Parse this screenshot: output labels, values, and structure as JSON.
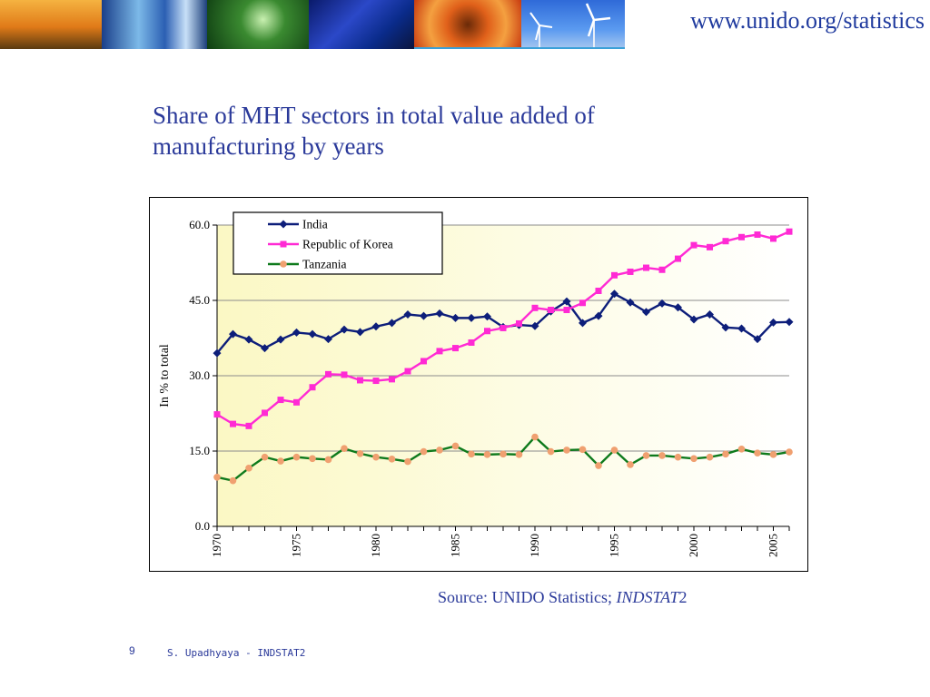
{
  "header": {
    "url": "www.unido.org/statistics"
  },
  "slide": {
    "title": "Share of MHT sectors in total value added of manufacturing by years",
    "source_prefix": "Source: UNIDO Statistics; ",
    "source_italic": "INDSTAT",
    "source_suffix": "2",
    "page_number": "9",
    "footer": "S. Upadhyaya - INDSTAT2"
  },
  "chart_data": {
    "type": "line",
    "title": "",
    "xlabel": "",
    "ylabel": "In % to total",
    "ylim": [
      0,
      60
    ],
    "yticks": [
      "0.0",
      "15.0",
      "30.0",
      "45.0",
      "60.0"
    ],
    "xtick_labels": [
      "1970",
      "1975",
      "1980",
      "1985",
      "1990",
      "1995",
      "2000",
      "2005"
    ],
    "grid": "horizontal",
    "legend_position": "top-left",
    "x": [
      1970,
      1971,
      1972,
      1973,
      1974,
      1975,
      1976,
      1977,
      1978,
      1979,
      1980,
      1981,
      1982,
      1983,
      1984,
      1985,
      1986,
      1987,
      1988,
      1989,
      1990,
      1991,
      1992,
      1993,
      1994,
      1995,
      1996,
      1997,
      1998,
      1999,
      2000,
      2001,
      2002,
      2003,
      2004,
      2005,
      2006
    ],
    "series": [
      {
        "name": "India",
        "color": "#0d1e7a",
        "marker": "diamond",
        "values": [
          34.5,
          38.3,
          37.2,
          35.5,
          37.2,
          38.6,
          38.3,
          37.3,
          39.2,
          38.7,
          39.8,
          40.5,
          42.2,
          41.9,
          42.4,
          41.5,
          41.5,
          41.8,
          39.7,
          40.1,
          39.9,
          42.8,
          44.8,
          40.5,
          41.9,
          46.3,
          44.6,
          42.7,
          44.4,
          43.6,
          41.2,
          42.2,
          39.6,
          39.4,
          37.3,
          40.6,
          40.7
        ]
      },
      {
        "name": "Republic of Korea",
        "color": "#ff2ad4",
        "marker": "square",
        "values": [
          22.3,
          20.4,
          20.0,
          22.6,
          25.2,
          24.7,
          27.7,
          30.3,
          30.2,
          29.1,
          29.0,
          29.3,
          30.9,
          32.9,
          34.9,
          35.5,
          36.6,
          38.9,
          39.5,
          40.4,
          43.5,
          43.1,
          43.1,
          44.5,
          46.9,
          50.0,
          50.7,
          51.5,
          51.1,
          53.3,
          56.0,
          55.6,
          56.8,
          57.6,
          58.1,
          57.3,
          58.7
        ]
      },
      {
        "name": "Tanzania",
        "color": "#0e7a1c",
        "marker_color": "#f0a070",
        "marker": "circle",
        "values": [
          9.8,
          9.1,
          11.6,
          13.8,
          13.0,
          13.8,
          13.5,
          13.3,
          15.5,
          14.5,
          13.8,
          13.4,
          12.9,
          14.9,
          15.2,
          16.0,
          14.4,
          14.3,
          14.4,
          14.3,
          17.8,
          14.9,
          15.2,
          15.3,
          12.1,
          15.2,
          12.3,
          14.1,
          14.1,
          13.8,
          13.5,
          13.8,
          14.4,
          15.4,
          14.6,
          14.3,
          14.8
        ]
      }
    ]
  }
}
